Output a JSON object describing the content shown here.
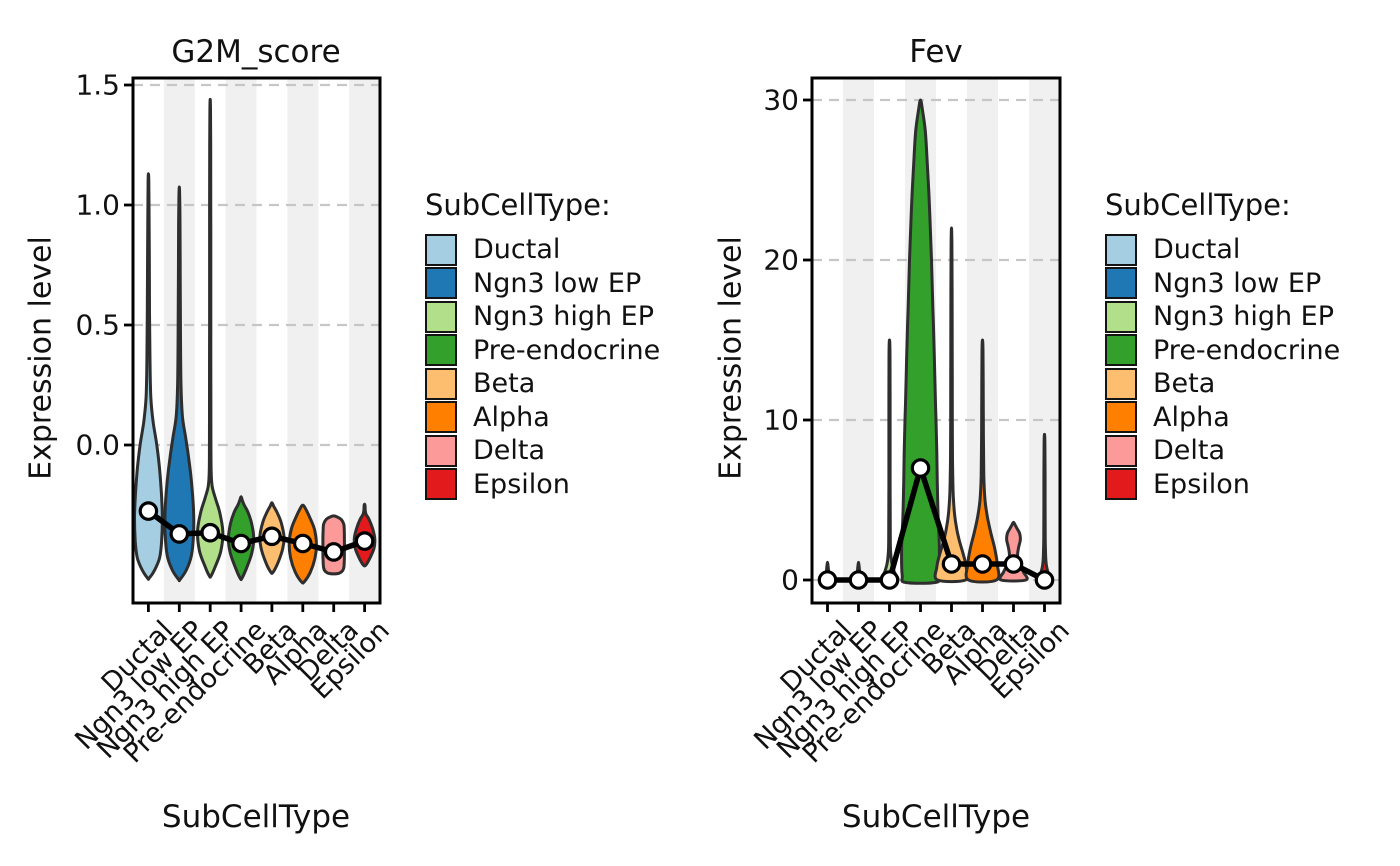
{
  "figure": {
    "background": "#ffffff",
    "xlabel": "SubCellType",
    "ylabel": "Expression level",
    "legend_title": "SubCellType:",
    "categories": [
      "Ductal",
      "Ngn3 low EP",
      "Ngn3 high EP",
      "Pre-endocrine",
      "Beta",
      "Alpha",
      "Delta",
      "Epsilon"
    ],
    "palette": [
      "#a6cee3",
      "#1f78b4",
      "#b2df8a",
      "#33a02c",
      "#fdbf6f",
      "#ff7f00",
      "#fb9a99",
      "#e31a1c"
    ],
    "styles": {
      "band_color": "#f0f0f0",
      "grid_color": "#c6c6c6",
      "violin_outline": "#2e2e2e",
      "median_line_color": "#000000",
      "marker_fill": "#ffffff",
      "marker_edge": "#000000",
      "axis_color": "#000000"
    }
  },
  "chart_data": [
    {
      "type": "violin",
      "title": "G2M_score",
      "xlabel": "SubCellType",
      "ylabel": "Expression level",
      "legend_title": "SubCellType:",
      "categories": [
        "Ductal",
        "Ngn3 low EP",
        "Ngn3 high EP",
        "Pre-endocrine",
        "Beta",
        "Alpha",
        "Delta",
        "Epsilon"
      ],
      "ylim": [
        -0.658,
        1.529
      ],
      "yticks": [
        0.0,
        0.5,
        1.0,
        1.5
      ],
      "ytick_labels": [
        "0.0",
        "0.5",
        "1.0",
        "1.5"
      ],
      "grid": true,
      "legend_position": "right",
      "shaded_columns": [
        1,
        3,
        5,
        7
      ],
      "median_points": [
        -0.275,
        -0.37,
        -0.365,
        -0.41,
        -0.38,
        -0.41,
        -0.445,
        -0.4
      ],
      "violin_max": [
        1.13,
        1.075,
        1.44,
        -0.215,
        -0.24,
        -0.25,
        -0.295,
        -0.247
      ],
      "violins": [
        {
          "category": "Ductal",
          "color": "#a6cee3",
          "width_scale": 0.9,
          "profile": [
            [
              -0.555,
              0.05
            ],
            [
              -0.52,
              0.45
            ],
            [
              -0.47,
              0.8
            ],
            [
              -0.4,
              0.95
            ],
            [
              -0.3,
              1.0
            ],
            [
              -0.2,
              0.93
            ],
            [
              -0.1,
              0.8
            ],
            [
              0.0,
              0.6
            ],
            [
              0.1,
              0.33
            ],
            [
              0.2,
              0.17
            ],
            [
              0.35,
              0.11
            ],
            [
              0.55,
              0.08
            ],
            [
              0.8,
              0.06
            ],
            [
              1.0,
              0.04
            ],
            [
              1.1,
              0.025
            ],
            [
              1.13,
              0.0
            ]
          ]
        },
        {
          "category": "Ngn3 low EP",
          "color": "#1f78b4",
          "width_scale": 0.92,
          "profile": [
            [
              -0.56,
              0.05
            ],
            [
              -0.52,
              0.5
            ],
            [
              -0.46,
              0.85
            ],
            [
              -0.37,
              1.0
            ],
            [
              -0.27,
              1.0
            ],
            [
              -0.15,
              0.85
            ],
            [
              -0.05,
              0.65
            ],
            [
              0.03,
              0.45
            ],
            [
              0.12,
              0.22
            ],
            [
              0.25,
              0.12
            ],
            [
              0.45,
              0.085
            ],
            [
              0.7,
              0.065
            ],
            [
              0.92,
              0.05
            ],
            [
              1.03,
              0.03
            ],
            [
              1.075,
              0.0
            ]
          ]
        },
        {
          "category": "Ngn3 high EP",
          "color": "#b2df8a",
          "width_scale": 0.82,
          "profile": [
            [
              -0.545,
              0.07
            ],
            [
              -0.5,
              0.45
            ],
            [
              -0.44,
              0.85
            ],
            [
              -0.36,
              1.0
            ],
            [
              -0.28,
              0.75
            ],
            [
              -0.22,
              0.4
            ],
            [
              -0.17,
              0.15
            ],
            [
              -0.1,
              0.07
            ],
            [
              0.1,
              0.055
            ],
            [
              0.5,
              0.05
            ],
            [
              0.9,
              0.045
            ],
            [
              1.25,
              0.04
            ],
            [
              1.4,
              0.025
            ],
            [
              1.44,
              0.0
            ]
          ]
        },
        {
          "category": "Pre-endocrine",
          "color": "#33a02c",
          "width_scale": 0.82,
          "profile": [
            [
              -0.555,
              0.07
            ],
            [
              -0.51,
              0.45
            ],
            [
              -0.45,
              0.85
            ],
            [
              -0.39,
              1.0
            ],
            [
              -0.33,
              0.85
            ],
            [
              -0.28,
              0.55
            ],
            [
              -0.25,
              0.25
            ],
            [
              -0.23,
              0.1
            ],
            [
              -0.215,
              0.0
            ]
          ]
        },
        {
          "category": "Beta",
          "color": "#fdbf6f",
          "width_scale": 0.78,
          "profile": [
            [
              -0.53,
              0.09
            ],
            [
              -0.49,
              0.5
            ],
            [
              -0.43,
              0.9
            ],
            [
              -0.38,
              1.0
            ],
            [
              -0.32,
              0.75
            ],
            [
              -0.28,
              0.42
            ],
            [
              -0.255,
              0.15
            ],
            [
              -0.24,
              0.0
            ]
          ]
        },
        {
          "category": "Alpha",
          "color": "#ff7f00",
          "width_scale": 0.88,
          "profile": [
            [
              -0.57,
              0.1
            ],
            [
              -0.53,
              0.55
            ],
            [
              -0.47,
              0.9
            ],
            [
              -0.41,
              1.0
            ],
            [
              -0.35,
              0.85
            ],
            [
              -0.3,
              0.5
            ],
            [
              -0.265,
              0.2
            ],
            [
              -0.25,
              0.0
            ]
          ]
        },
        {
          "category": "Delta",
          "color": "#fb9a99",
          "width_scale": 0.82,
          "profile": [
            [
              -0.535,
              0.35
            ],
            [
              -0.525,
              0.68
            ],
            [
              -0.51,
              0.8
            ],
            [
              -0.48,
              0.84
            ],
            [
              -0.44,
              0.85
            ],
            [
              -0.4,
              0.85
            ],
            [
              -0.36,
              0.84
            ],
            [
              -0.33,
              0.8
            ],
            [
              -0.31,
              0.6
            ],
            [
              -0.3,
              0.3
            ],
            [
              -0.295,
              0.0
            ]
          ]
        },
        {
          "category": "Epsilon",
          "color": "#e31a1c",
          "width_scale": 0.78,
          "profile": [
            [
              -0.5,
              0.1
            ],
            [
              -0.47,
              0.45
            ],
            [
              -0.43,
              0.78
            ],
            [
              -0.39,
              0.85
            ],
            [
              -0.35,
              0.68
            ],
            [
              -0.31,
              0.38
            ],
            [
              -0.29,
              0.14
            ],
            [
              -0.275,
              0.06
            ],
            [
              -0.262,
              0.045
            ],
            [
              -0.252,
              0.035
            ],
            [
              -0.247,
              0.0
            ]
          ]
        }
      ]
    },
    {
      "type": "violin",
      "title": "Fev",
      "xlabel": "SubCellType",
      "ylabel": "Expression level",
      "legend_title": "SubCellType:",
      "categories": [
        "Ductal",
        "Ngn3 low EP",
        "Ngn3 high EP",
        "Pre-endocrine",
        "Beta",
        "Alpha",
        "Delta",
        "Epsilon"
      ],
      "ylim": [
        -1.438,
        31.375
      ],
      "yticks": [
        0,
        10,
        20,
        30
      ],
      "ytick_labels": [
        "0",
        "10",
        "20",
        "30"
      ],
      "grid": true,
      "legend_position": "right",
      "shaded_columns": [
        1,
        3,
        5,
        7
      ],
      "median_points": [
        0,
        0,
        0,
        7,
        1,
        1,
        1,
        0
      ],
      "violin_max": [
        1.1,
        1.1,
        15,
        30,
        22,
        15,
        3.6,
        9.1
      ],
      "violins": [
        {
          "category": "Ductal",
          "color": "#a6cee3",
          "width_scale": 0.9,
          "profile": [
            [
              0,
              0.22
            ],
            [
              0.4,
              0.1
            ],
            [
              0.8,
              0.05
            ],
            [
              1.1,
              0.0
            ]
          ]
        },
        {
          "category": "Ngn3 low EP",
          "color": "#1f78b4",
          "width_scale": 0.9,
          "profile": [
            [
              0,
              0.22
            ],
            [
              0.4,
              0.1
            ],
            [
              0.8,
              0.05
            ],
            [
              1.1,
              0.0
            ]
          ]
        },
        {
          "category": "Ngn3 high EP",
          "color": "#b2df8a",
          "width_scale": 0.82,
          "profile": [
            [
              0,
              0.62
            ],
            [
              0.5,
              0.38
            ],
            [
              1.0,
              0.2
            ],
            [
              1.6,
              0.1
            ],
            [
              2.5,
              0.06
            ],
            [
              6,
              0.05
            ],
            [
              10,
              0.045
            ],
            [
              14,
              0.04
            ],
            [
              15,
              0.0
            ]
          ]
        },
        {
          "category": "Pre-endocrine",
          "color": "#33a02c",
          "width_scale": 1.22,
          "profile": [
            [
              -0.15,
              0.8
            ],
            [
              0.3,
              0.97
            ],
            [
              2,
              1.0
            ],
            [
              4,
              0.93
            ],
            [
              6,
              0.89
            ],
            [
              8,
              0.86
            ],
            [
              10,
              0.82
            ],
            [
              12,
              0.77
            ],
            [
              14,
              0.73
            ],
            [
              16,
              0.68
            ],
            [
              18,
              0.63
            ],
            [
              20,
              0.58
            ],
            [
              22,
              0.52
            ],
            [
              24,
              0.45
            ],
            [
              26,
              0.36
            ],
            [
              28,
              0.26
            ],
            [
              29.4,
              0.1
            ],
            [
              30,
              0.0
            ]
          ]
        },
        {
          "category": "Beta",
          "color": "#fdbf6f",
          "width_scale": 0.95,
          "profile": [
            [
              0,
              0.95
            ],
            [
              0.8,
              1.0
            ],
            [
              1.6,
              0.8
            ],
            [
              2.4,
              0.55
            ],
            [
              3.2,
              0.35
            ],
            [
              4.2,
              0.2
            ],
            [
              5.5,
              0.11
            ],
            [
              7.5,
              0.07
            ],
            [
              10,
              0.055
            ],
            [
              14,
              0.05
            ],
            [
              18,
              0.04
            ],
            [
              21,
              0.03
            ],
            [
              22,
              0.0
            ]
          ]
        },
        {
          "category": "Alpha",
          "color": "#ff7f00",
          "width_scale": 0.95,
          "profile": [
            [
              0,
              0.95
            ],
            [
              1.0,
              1.0
            ],
            [
              2.0,
              0.82
            ],
            [
              3.0,
              0.55
            ],
            [
              4.0,
              0.32
            ],
            [
              5.0,
              0.17
            ],
            [
              6.5,
              0.09
            ],
            [
              9,
              0.06
            ],
            [
              12,
              0.05
            ],
            [
              14.3,
              0.035
            ],
            [
              15,
              0.0
            ]
          ]
        },
        {
          "category": "Delta",
          "color": "#fb9a99",
          "width_scale": 0.8,
          "profile": [
            [
              0,
              1.0
            ],
            [
              0.5,
              0.8
            ],
            [
              1.0,
              0.48
            ],
            [
              1.5,
              0.33
            ],
            [
              2.0,
              0.4
            ],
            [
              2.5,
              0.55
            ],
            [
              2.9,
              0.5
            ],
            [
              3.2,
              0.3
            ],
            [
              3.45,
              0.12
            ],
            [
              3.6,
              0.0
            ]
          ]
        },
        {
          "category": "Epsilon",
          "color": "#e31a1c",
          "width_scale": 0.78,
          "profile": [
            [
              0,
              0.5
            ],
            [
              0.5,
              0.28
            ],
            [
              1.0,
              0.14
            ],
            [
              1.8,
              0.08
            ],
            [
              3,
              0.055
            ],
            [
              6,
              0.05
            ],
            [
              8.5,
              0.035
            ],
            [
              9.1,
              0.0
            ]
          ]
        }
      ]
    }
  ]
}
